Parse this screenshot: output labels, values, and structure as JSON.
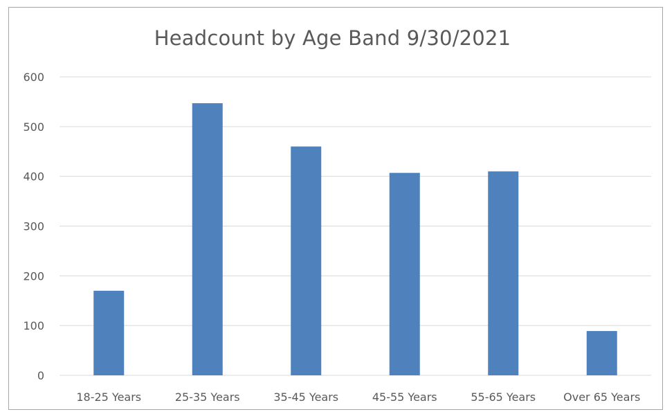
{
  "chart_data": {
    "type": "bar",
    "title": "Headcount by Age Band 9/30/2021",
    "xlabel": "",
    "ylabel": "",
    "categories": [
      "18-25 Years",
      "25-35 Years",
      "35-45 Years",
      "45-55 Years",
      "55-65 Years",
      "Over 65 Years"
    ],
    "values": [
      170,
      547,
      460,
      407,
      410,
      89
    ],
    "ylim": [
      0,
      600
    ],
    "yticks": [
      "0",
      "100",
      "200",
      "300",
      "400",
      "500",
      "600"
    ],
    "grid": true,
    "legend": "none",
    "bar_color": "#4f81bd",
    "grid_color": "#d9d9d9",
    "text_color": "#595959"
  }
}
